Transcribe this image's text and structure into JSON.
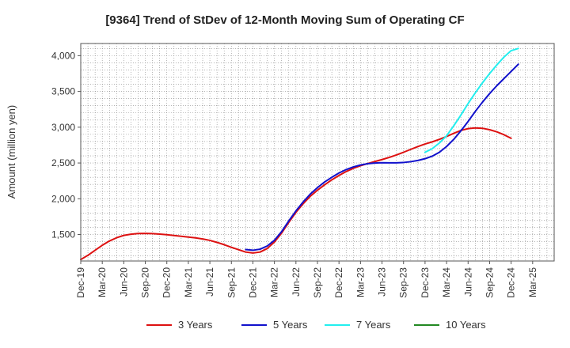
{
  "chart_data": {
    "type": "line",
    "title": "[9364]  Trend of StDev of 12-Month Moving Sum of Operating CF",
    "xlabel": "",
    "ylabel": "Amount (million yen)",
    "ylim": [
      1130,
      4170
    ],
    "yticks": [
      1500,
      2000,
      2500,
      3000,
      3500,
      4000
    ],
    "ytick_labels": [
      "1,500",
      "2,000",
      "2,500",
      "3,000",
      "3,500",
      "4,000"
    ],
    "xlim": [
      0,
      66
    ],
    "xtick_labels": [
      "Dec-19",
      "Mar-20",
      "Jun-20",
      "Sep-20",
      "Dec-20",
      "Mar-21",
      "Jun-21",
      "Sep-21",
      "Dec-21",
      "Mar-22",
      "Jun-22",
      "Sep-22",
      "Dec-22",
      "Mar-23",
      "Jun-23",
      "Sep-23",
      "Dec-23",
      "Mar-24",
      "Jun-24",
      "Sep-24",
      "Dec-24",
      "Mar-25"
    ],
    "grid": true,
    "legend_position": "bottom",
    "series": [
      {
        "name": "3 Years",
        "color": "#dd1111",
        "points": [
          [
            0,
            1150
          ],
          [
            1,
            1210
          ],
          [
            2,
            1280
          ],
          [
            3,
            1350
          ],
          [
            4,
            1410
          ],
          [
            5,
            1455
          ],
          [
            6,
            1488
          ],
          [
            7,
            1505
          ],
          [
            8,
            1514
          ],
          [
            9,
            1516
          ],
          [
            10,
            1513
          ],
          [
            11,
            1506
          ],
          [
            12,
            1497
          ],
          [
            13,
            1487
          ],
          [
            14,
            1476
          ],
          [
            15,
            1465
          ],
          [
            16,
            1453
          ],
          [
            17,
            1438
          ],
          [
            18,
            1418
          ],
          [
            19,
            1390
          ],
          [
            20,
            1358
          ],
          [
            21,
            1322
          ],
          [
            22,
            1288
          ],
          [
            23,
            1255
          ],
          [
            24,
            1242
          ],
          [
            25,
            1255
          ],
          [
            26,
            1305
          ],
          [
            27,
            1395
          ],
          [
            28,
            1520
          ],
          [
            29,
            1670
          ],
          [
            30,
            1810
          ],
          [
            31,
            1930
          ],
          [
            32,
            2035
          ],
          [
            33,
            2120
          ],
          [
            34,
            2195
          ],
          [
            35,
            2265
          ],
          [
            36,
            2325
          ],
          [
            37,
            2380
          ],
          [
            38,
            2425
          ],
          [
            39,
            2462
          ],
          [
            40,
            2492
          ],
          [
            41,
            2520
          ],
          [
            42,
            2548
          ],
          [
            43,
            2578
          ],
          [
            44,
            2612
          ],
          [
            45,
            2650
          ],
          [
            46,
            2690
          ],
          [
            47,
            2730
          ],
          [
            48,
            2765
          ],
          [
            49,
            2795
          ],
          [
            50,
            2830
          ],
          [
            51,
            2870
          ],
          [
            52,
            2915
          ],
          [
            53,
            2955
          ],
          [
            54,
            2980
          ],
          [
            55,
            2990
          ],
          [
            56,
            2985
          ],
          [
            57,
            2965
          ],
          [
            58,
            2935
          ],
          [
            59,
            2895
          ],
          [
            60,
            2845
          ]
        ]
      },
      {
        "name": "5 Years",
        "color": "#1111cc",
        "points": [
          [
            23,
            1290
          ],
          [
            24,
            1280
          ],
          [
            25,
            1295
          ],
          [
            26,
            1340
          ],
          [
            27,
            1420
          ],
          [
            28,
            1540
          ],
          [
            29,
            1690
          ],
          [
            30,
            1830
          ],
          [
            31,
            1955
          ],
          [
            32,
            2065
          ],
          [
            33,
            2155
          ],
          [
            34,
            2235
          ],
          [
            35,
            2300
          ],
          [
            36,
            2360
          ],
          [
            37,
            2408
          ],
          [
            38,
            2445
          ],
          [
            39,
            2472
          ],
          [
            40,
            2490
          ],
          [
            41,
            2500
          ],
          [
            42,
            2503
          ],
          [
            43,
            2502
          ],
          [
            44,
            2502
          ],
          [
            45,
            2507
          ],
          [
            46,
            2518
          ],
          [
            47,
            2535
          ],
          [
            48,
            2560
          ],
          [
            49,
            2595
          ],
          [
            50,
            2650
          ],
          [
            51,
            2730
          ],
          [
            52,
            2830
          ],
          [
            53,
            2950
          ],
          [
            54,
            3080
          ],
          [
            55,
            3220
          ],
          [
            56,
            3350
          ],
          [
            57,
            3470
          ],
          [
            58,
            3580
          ],
          [
            59,
            3680
          ],
          [
            60,
            3780
          ],
          [
            61,
            3880
          ]
        ]
      },
      {
        "name": "7 Years",
        "color": "#22eeee",
        "points": [
          [
            48,
            2650
          ],
          [
            49,
            2700
          ],
          [
            50,
            2780
          ],
          [
            51,
            2880
          ],
          [
            52,
            3020
          ],
          [
            53,
            3170
          ],
          [
            54,
            3330
          ],
          [
            55,
            3480
          ],
          [
            56,
            3620
          ],
          [
            57,
            3750
          ],
          [
            58,
            3870
          ],
          [
            59,
            3980
          ],
          [
            60,
            4070
          ],
          [
            61,
            4100
          ]
        ]
      },
      {
        "name": "10 Years",
        "color": "#228822",
        "points": []
      }
    ]
  }
}
